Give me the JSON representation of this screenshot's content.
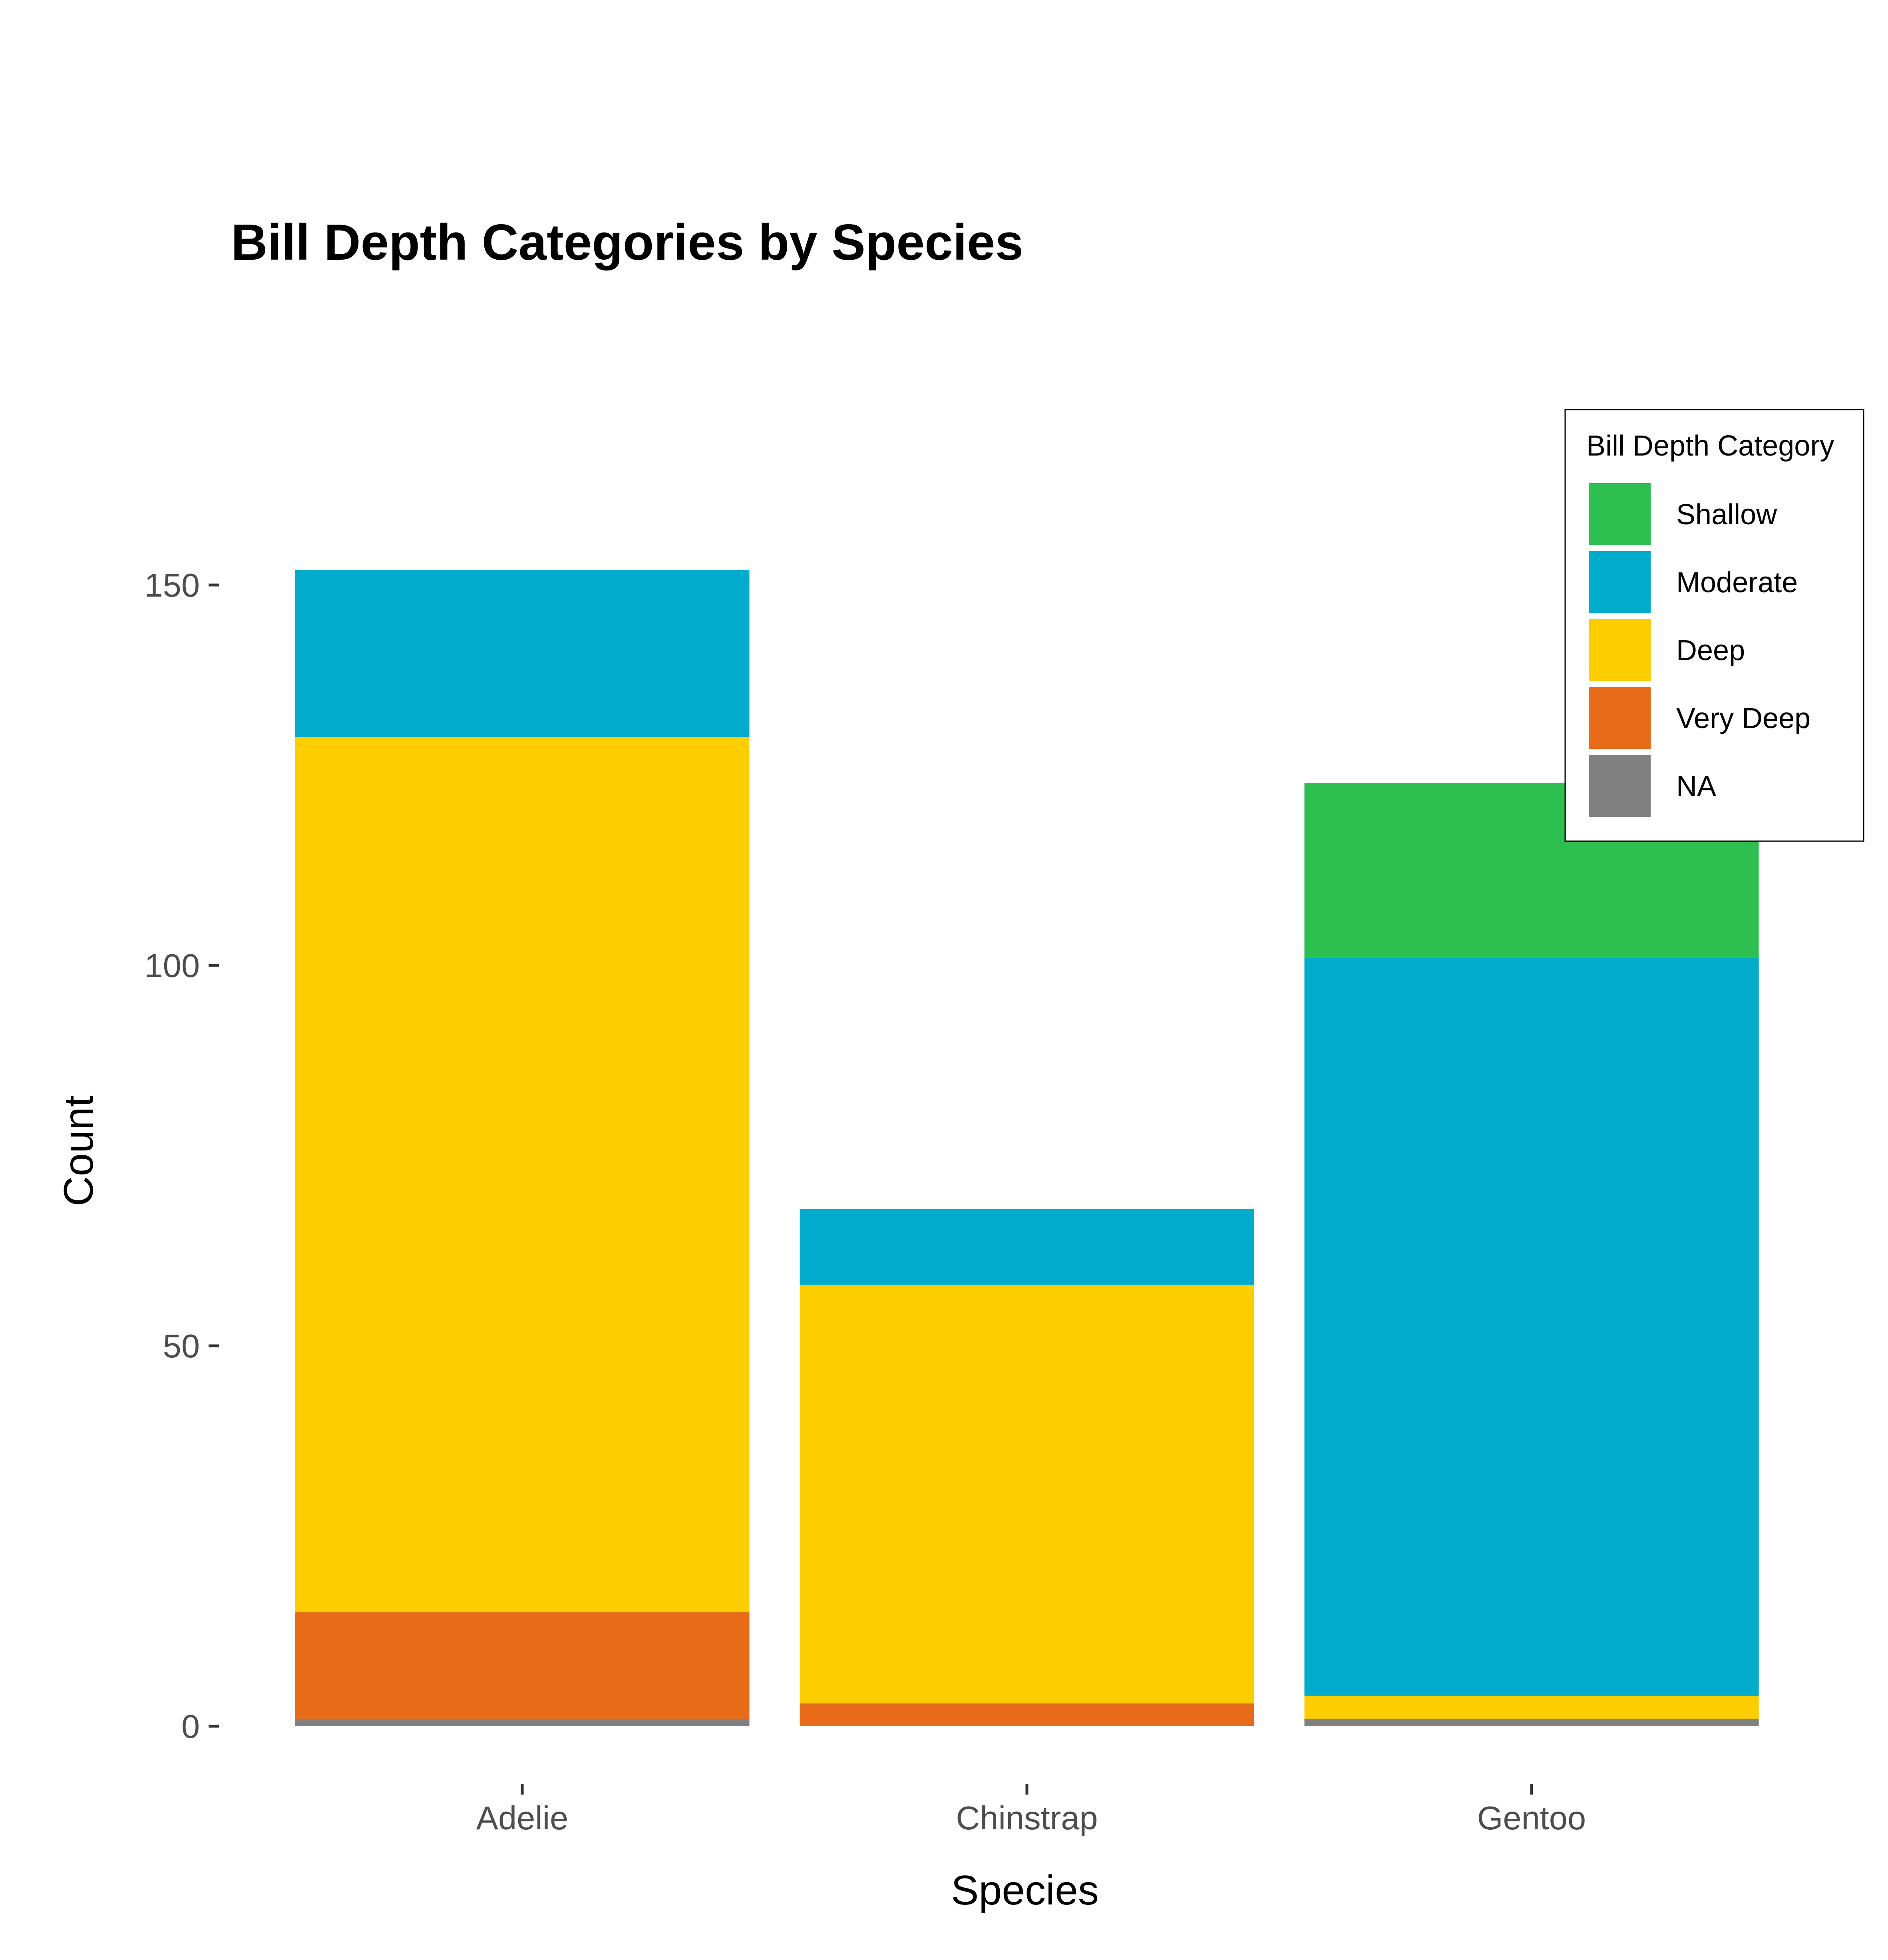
{
  "chart_data": {
    "type": "bar",
    "stacked": true,
    "title": "Bill Depth Categories by Species",
    "xlabel": "Species",
    "ylabel": "Count",
    "categories": [
      "Adelie",
      "Chinstrap",
      "Gentoo"
    ],
    "ylim": [
      0,
      160
    ],
    "yticks": [
      0,
      50,
      100,
      150
    ],
    "grid": false,
    "legend": {
      "title": "Bill Depth Category",
      "position": "top-right",
      "entries": [
        "Shallow",
        "Moderate",
        "Deep",
        "Very Deep",
        "NA"
      ]
    },
    "series": [
      {
        "name": "Shallow",
        "color": "#2DBF4F",
        "values": [
          0,
          0,
          23
        ]
      },
      {
        "name": "Moderate",
        "color": "#00ABCC",
        "values": [
          22,
          10,
          97
        ]
      },
      {
        "name": "Deep",
        "color": "#FDCD00",
        "values": [
          115,
          55,
          3
        ]
      },
      {
        "name": "Very Deep",
        "color": "#E76B18",
        "values": [
          14,
          3,
          0
        ]
      },
      {
        "name": "NA",
        "color": "#808080",
        "values": [
          1,
          0,
          1
        ]
      }
    ]
  }
}
